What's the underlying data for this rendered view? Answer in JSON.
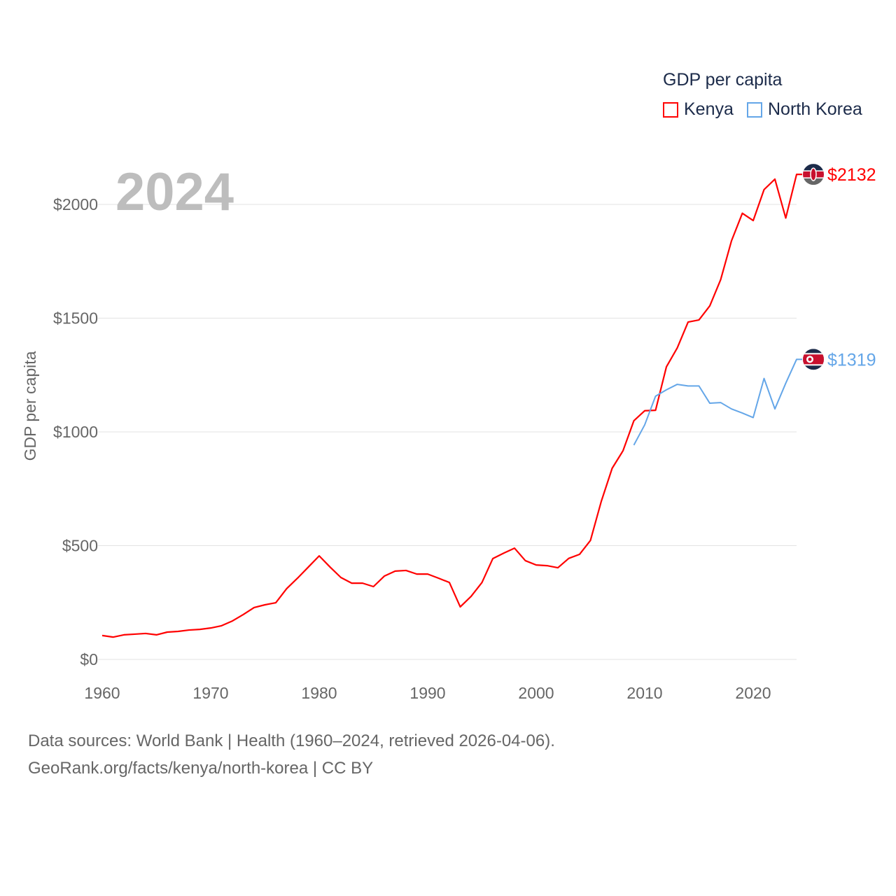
{
  "chart_data": {
    "type": "line",
    "title": "",
    "year_label": "2024",
    "ylabel": "GDP per capita",
    "xlabel": "",
    "xlim": [
      1960,
      2024
    ],
    "ylim": [
      0,
      2200
    ],
    "x_ticks": [
      1960,
      1970,
      1980,
      1990,
      2000,
      2010,
      2020
    ],
    "y_ticks": [
      0,
      500,
      1000,
      1500,
      2000
    ],
    "y_tick_labels": [
      "$0",
      "$500",
      "$1000",
      "$1500",
      "$2000"
    ],
    "grid": true,
    "legend": {
      "title": "GDP per capita",
      "placement": "top-right"
    },
    "series": [
      {
        "name": "Kenya",
        "color": "#ff0000",
        "end_label": "$2132",
        "flag": "kenya-flag-icon",
        "start_year": 1960,
        "values": [
          105,
          98,
          108,
          111,
          114,
          108,
          120,
          123,
          129,
          132,
          138,
          148,
          169,
          197,
          228,
          240,
          249,
          311,
          357,
          406,
          455,
          406,
          360,
          335,
          335,
          320,
          366,
          388,
          391,
          375,
          375,
          357,
          338,
          231,
          277,
          338,
          443,
          467,
          489,
          434,
          415,
          412,
          403,
          444,
          462,
          523,
          695,
          840,
          917,
          1049,
          1093,
          1095,
          1286,
          1369,
          1483,
          1492,
          1554,
          1669,
          1840,
          1961,
          1929,
          2065,
          2111,
          1940,
          2132
        ]
      },
      {
        "name": "North Korea",
        "color": "#64a6e8",
        "end_label": "$1319",
        "flag": "north-korea-flag-icon",
        "start_year": 2009,
        "values": [
          942,
          1031,
          1157,
          1185,
          1209,
          1202,
          1202,
          1126,
          1129,
          1101,
          1083,
          1063,
          1235,
          1101,
          1214,
          1319
        ]
      }
    ]
  },
  "footer": {
    "line1": "Data sources: World Bank | Health (1960–2024, retrieved 2026-04-06).",
    "line2": "GeoRank.org/facts/kenya/north-korea | CC BY"
  }
}
